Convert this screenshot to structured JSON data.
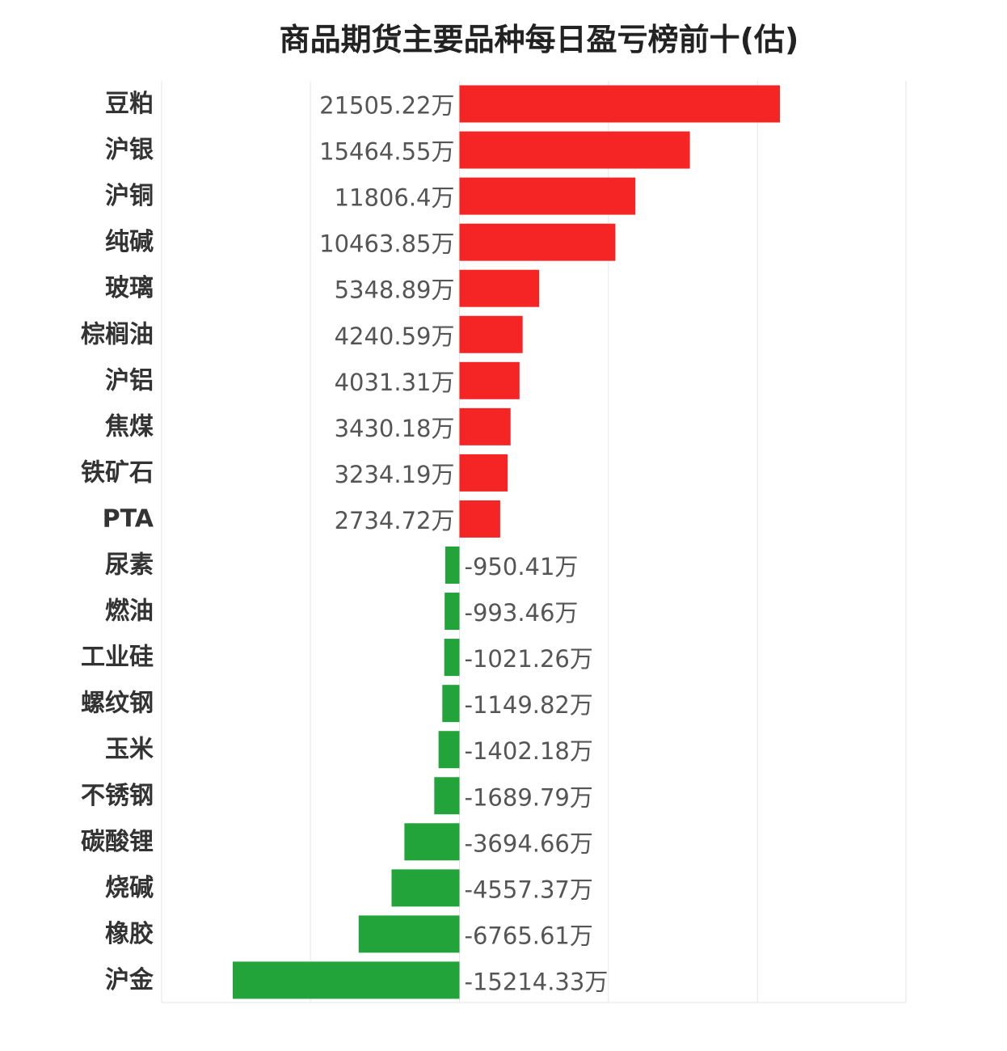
{
  "chart_data": {
    "type": "bar",
    "orientation": "horizontal",
    "title": "商品期货主要品种每日盈亏榜前十(估)",
    "value_suffix": "万",
    "categories": [
      "豆粕",
      "沪银",
      "沪铜",
      "纯碱",
      "玻璃",
      "棕榈油",
      "沪铝",
      "焦煤",
      "铁矿石",
      "PTA",
      "尿素",
      "燃油",
      "工业硅",
      "螺纹钢",
      "玉米",
      "不锈钢",
      "碳酸锂",
      "烧碱",
      "橡胶",
      "沪金"
    ],
    "values": [
      21505.22,
      15464.55,
      11806.4,
      10463.85,
      5348.89,
      4240.59,
      4031.31,
      3430.18,
      3234.19,
      2734.72,
      -950.41,
      -993.46,
      -1021.26,
      -1149.82,
      -1402.18,
      -1689.79,
      -3694.66,
      -4557.37,
      -6765.61,
      -15214.33
    ],
    "value_labels": [
      "21505.22万",
      "15464.55万",
      "11806.4万",
      "10463.85万",
      "5348.89万",
      "4240.59万",
      "4031.31万",
      "3430.18万",
      "3234.19万",
      "2734.72万",
      "-950.41万",
      "-993.46万",
      "-1021.26万",
      "-1149.82万",
      "-1402.18万",
      "-1689.79万",
      "-3694.66万",
      "-4557.37万",
      "-6765.61万",
      "-15214.33万"
    ],
    "xlim": [
      -20000,
      30000
    ],
    "grid": true,
    "colors": {
      "positive": "#f52525",
      "negative": "#22a43a",
      "grid": "#e6e6e6"
    }
  }
}
